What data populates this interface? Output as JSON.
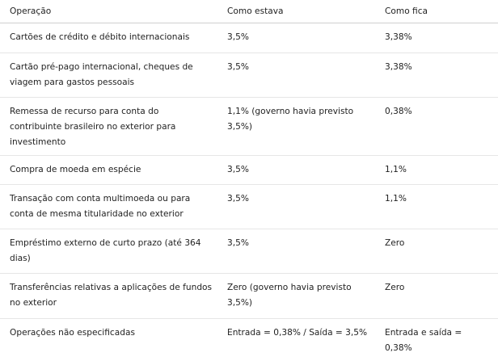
{
  "table": {
    "headers": [
      "Operação",
      "Como estava",
      "Como fica"
    ],
    "rows": [
      [
        "Cartões de crédito e débito internacionais",
        "3,5%",
        "3,38%"
      ],
      [
        "Cartão pré-pago internacional, cheques de viagem para gastos pessoais",
        "3,5%",
        "3,38%"
      ],
      [
        "Remessa de recurso para conta do contribuinte brasileiro no exterior para investimento",
        "1,1% (governo havia previsto 3,5%)",
        "0,38%"
      ],
      [
        "Compra de moeda em espécie",
        "3,5%",
        "1,1%"
      ],
      [
        "Transação com conta multimoeda ou para conta de mesma titularidade no exterior",
        "3,5%",
        "1,1%"
      ],
      [
        "Empréstimo externo de curto prazo (até 364 dias)",
        "3,5%",
        "Zero"
      ],
      [
        "Transferências relativas a aplicações de fundos no exterior",
        "Zero (governo havia previsto 3,5%)",
        "Zero"
      ],
      [
        "Operações não especificadas",
        "Entrada = 0,38% / Saída = 3,5%",
        "Entrada e saída = 0,38%"
      ]
    ]
  }
}
